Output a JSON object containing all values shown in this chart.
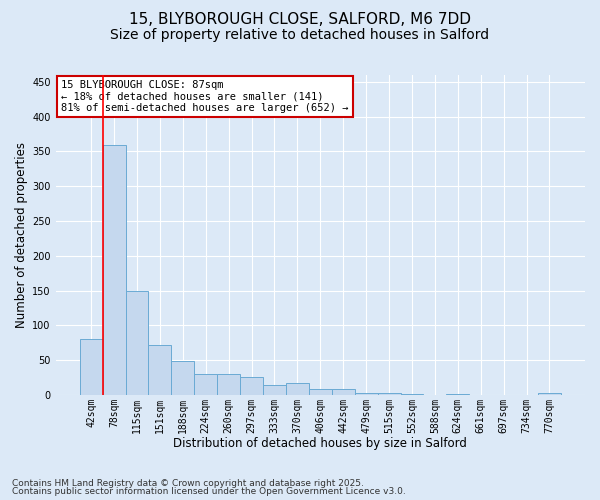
{
  "title_line1": "15, BLYBOROUGH CLOSE, SALFORD, M6 7DD",
  "title_line2": "Size of property relative to detached houses in Salford",
  "xlabel": "Distribution of detached houses by size in Salford",
  "ylabel": "Number of detached properties",
  "categories": [
    "42sqm",
    "78sqm",
    "115sqm",
    "151sqm",
    "188sqm",
    "224sqm",
    "260sqm",
    "297sqm",
    "333sqm",
    "370sqm",
    "406sqm",
    "442sqm",
    "479sqm",
    "515sqm",
    "552sqm",
    "588sqm",
    "624sqm",
    "661sqm",
    "697sqm",
    "734sqm",
    "770sqm"
  ],
  "values": [
    80,
    360,
    150,
    72,
    48,
    30,
    30,
    25,
    14,
    17,
    8,
    8,
    3,
    3,
    1,
    0,
    1,
    0,
    0,
    0,
    3
  ],
  "bar_color": "#c5d8ee",
  "bar_edge_color": "#6aaad4",
  "red_line_index": 1,
  "annotation_text": "15 BLYBOROUGH CLOSE: 87sqm\n← 18% of detached houses are smaller (141)\n81% of semi-detached houses are larger (652) →",
  "annotation_box_color": "white",
  "annotation_box_edge_color": "#cc0000",
  "ylim": [
    0,
    460
  ],
  "yticks": [
    0,
    50,
    100,
    150,
    200,
    250,
    300,
    350,
    400,
    450
  ],
  "background_color": "#dce9f7",
  "footer_line1": "Contains HM Land Registry data © Crown copyright and database right 2025.",
  "footer_line2": "Contains public sector information licensed under the Open Government Licence v3.0.",
  "grid_color": "#ffffff",
  "title_fontsize": 11,
  "subtitle_fontsize": 10,
  "axis_label_fontsize": 8.5,
  "tick_fontsize": 7,
  "annotation_fontsize": 7.5,
  "footer_fontsize": 6.5
}
